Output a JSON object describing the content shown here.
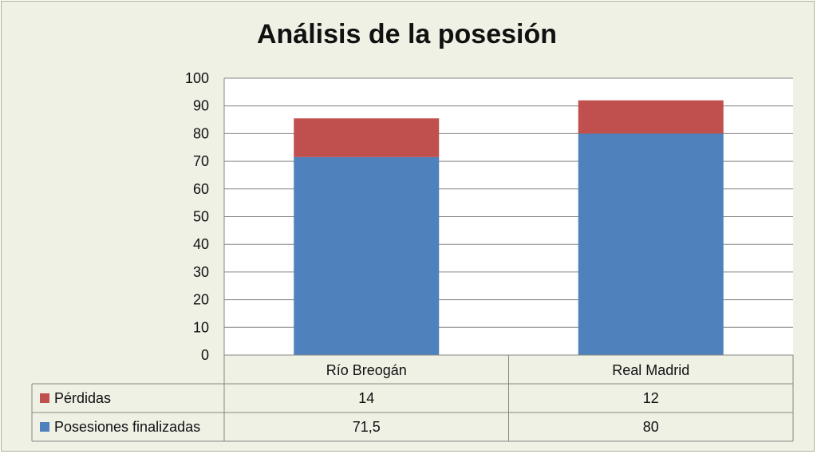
{
  "chart_data": {
    "type": "bar",
    "stacked": true,
    "title": "Análisis de la posesión",
    "categories": [
      "Río Breogán",
      "Real Madrid"
    ],
    "series": [
      {
        "name": "Posesiones finalizadas",
        "values": [
          71.5,
          80
        ],
        "labels": [
          "71,5",
          "80"
        ],
        "color": "#4f81bd"
      },
      {
        "name": "Pérdidas",
        "values": [
          14,
          12
        ],
        "labels": [
          "14",
          "12"
        ],
        "color": "#c0504d"
      }
    ],
    "ylim": [
      0,
      100
    ],
    "yticks": [
      0,
      10,
      20,
      30,
      40,
      50,
      60,
      70,
      80,
      90,
      100
    ],
    "grid": true,
    "data_table": true,
    "table_row_order": [
      "Pérdidas",
      "Posesiones finalizadas"
    ]
  }
}
